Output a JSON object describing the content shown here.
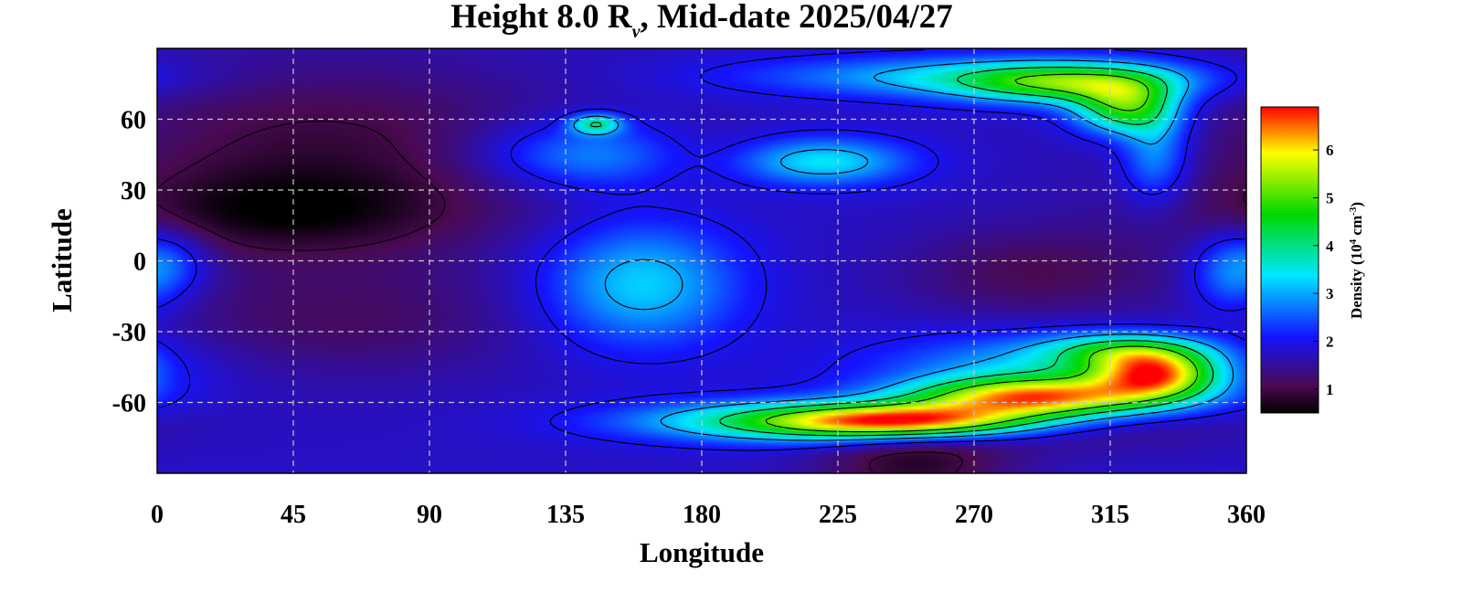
{
  "chart_data": {
    "type": "heatmap",
    "title_prefix": "Height 8.0 R",
    "title_sub": "v",
    "title_suffix": ", Mid-date 2025/04/27",
    "xlabel": "Longitude",
    "ylabel": "Latitude",
    "xlim": [
      0,
      360
    ],
    "ylim": [
      -90,
      90
    ],
    "xticks": [
      0,
      45,
      90,
      135,
      180,
      225,
      270,
      315,
      360
    ],
    "yticks": [
      60,
      30,
      0,
      -30,
      -60
    ],
    "grid": true,
    "colorbar": {
      "label": "Density (10",
      "label_sup1": "4",
      "label_mid": " cm",
      "label_sup2": "-3",
      "label_end": ")",
      "ticks": [
        1,
        2,
        3,
        4,
        5,
        6
      ],
      "range": [
        0.5,
        6.9
      ],
      "placement": "right"
    },
    "colors": {
      "colormap": [
        "#000000",
        "#4a0a52",
        "#1414ff",
        "#00e6ff",
        "#00d800",
        "#ffff00",
        "#ff0000"
      ],
      "contour": "#000000",
      "grid": "#c8c8c8"
    },
    "features": [
      {
        "lon": 55,
        "lat": 45,
        "value": 0.9,
        "rx": 55,
        "ry": 28
      },
      {
        "lon": 40,
        "lat": 20,
        "value": 1.0,
        "rx": 40,
        "ry": 12
      },
      {
        "lon": 175,
        "lat": 45,
        "value": 1.0,
        "rx": 20,
        "ry": 10
      },
      {
        "lon": 290,
        "lat": -5,
        "value": 1.1,
        "rx": 30,
        "ry": 14
      },
      {
        "lon": 60,
        "lat": -25,
        "value": 1.2,
        "rx": 45,
        "ry": 18
      },
      {
        "lon": 250,
        "lat": -85,
        "value": 0.8,
        "rx": 22,
        "ry": 14
      },
      {
        "lon": 290,
        "lat": -70,
        "value": 1.1,
        "rx": 40,
        "ry": 7
      },
      {
        "lon": 150,
        "lat": 45,
        "value": 3.2,
        "rx": 28,
        "ry": 10
      },
      {
        "lon": 145,
        "lat": 58,
        "value": 3.8,
        "rx": 6,
        "ry": 3
      },
      {
        "lon": 220,
        "lat": 42,
        "value": 3.4,
        "rx": 20,
        "ry": 7
      },
      {
        "lon": 160,
        "lat": -10,
        "value": 3.3,
        "rx": 22,
        "ry": 18
      },
      {
        "lon": 5,
        "lat": 0,
        "value": 2.4,
        "rx": 10,
        "ry": 10
      },
      {
        "lon": 355,
        "lat": -5,
        "value": 2.8,
        "rx": 10,
        "ry": 12
      },
      {
        "lon": 270,
        "lat": 78,
        "value": 3.2,
        "rx": 50,
        "ry": 6
      },
      {
        "lon": 300,
        "lat": 75,
        "value": 4.2,
        "rx": 25,
        "ry": 6
      },
      {
        "lon": 320,
        "lat": 65,
        "value": 4.6,
        "rx": 12,
        "ry": 8
      },
      {
        "lon": 330,
        "lat": 45,
        "value": 3.0,
        "rx": 8,
        "ry": 14
      },
      {
        "lon": 300,
        "lat": -45,
        "value": 3.2,
        "rx": 40,
        "ry": 10
      },
      {
        "lon": 215,
        "lat": -68,
        "value": 4.2,
        "rx": 40,
        "ry": 6
      },
      {
        "lon": 250,
        "lat": -68,
        "value": 5.6,
        "rx": 30,
        "ry": 5
      },
      {
        "lon": 290,
        "lat": -58,
        "value": 6.0,
        "rx": 30,
        "ry": 6
      },
      {
        "lon": 330,
        "lat": -48,
        "value": 5.4,
        "rx": 14,
        "ry": 7
      },
      {
        "lon": 320,
        "lat": -38,
        "value": 3.6,
        "rx": 18,
        "ry": 5
      }
    ]
  }
}
